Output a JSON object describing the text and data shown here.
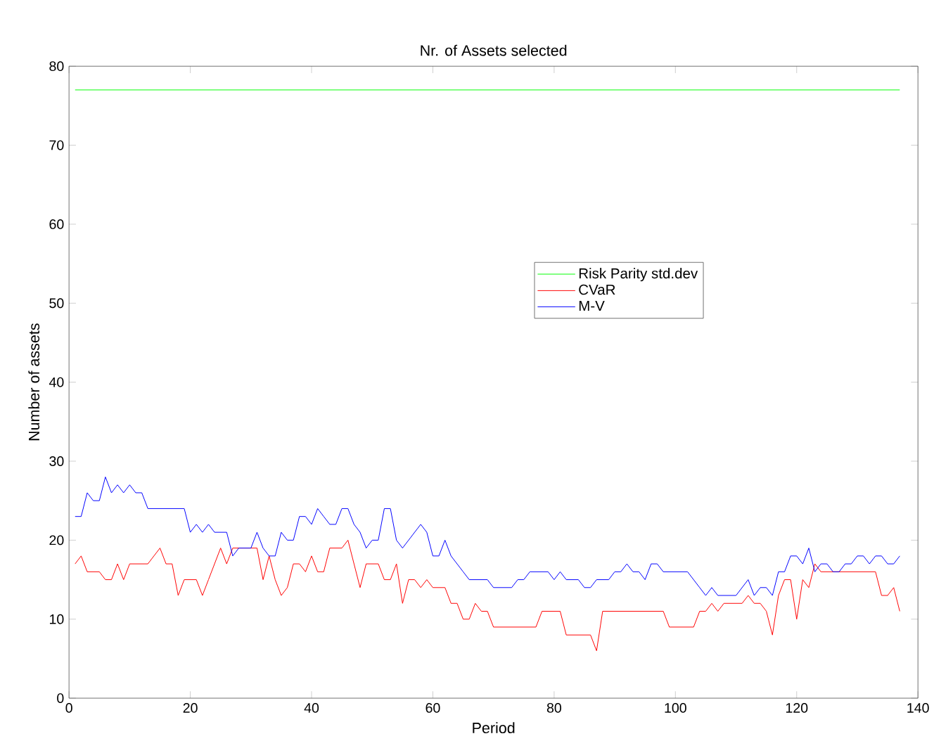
{
  "chart_data": {
    "type": "line",
    "title": "Nr. of Assets selected",
    "xlabel": "Period",
    "ylabel": "Number of assets",
    "xlim": [
      0,
      140
    ],
    "xticks": [
      0,
      20,
      40,
      60,
      80,
      100,
      120,
      140
    ],
    "ylim": [
      0,
      80
    ],
    "yticks": [
      0,
      10,
      20,
      30,
      40,
      50,
      60,
      70,
      80
    ],
    "legend": "right",
    "grid": false,
    "series": [
      {
        "name": "Risk Parity std.dev",
        "color": "#00ff00",
        "x": [
          1,
          137
        ],
        "values": [
          77,
          77
        ]
      },
      {
        "name": "CVaR",
        "color": "#ff0000",
        "x": [
          1,
          2,
          3,
          5,
          6,
          7,
          8,
          9,
          10,
          13,
          15,
          16,
          17,
          18,
          19,
          21,
          22,
          23,
          25,
          26,
          27,
          31,
          32,
          33,
          34,
          35,
          36,
          37,
          38,
          39,
          40,
          41,
          42,
          43,
          45,
          46,
          47,
          48,
          49,
          51,
          52,
          53,
          54,
          55,
          56,
          57,
          58,
          59,
          60,
          62,
          63,
          64,
          65,
          66,
          67,
          68,
          69,
          70,
          77,
          78,
          81,
          82,
          86,
          87,
          88,
          98,
          99,
          103,
          104,
          105,
          106,
          107,
          108,
          111,
          112,
          113,
          114,
          115,
          116,
          117,
          118,
          119,
          120,
          121,
          122,
          123,
          124,
          133,
          134,
          135,
          136,
          137
        ],
        "values": [
          17,
          18,
          16,
          16,
          15,
          15,
          17,
          15,
          17,
          17,
          19,
          17,
          17,
          13,
          15,
          15,
          13,
          15,
          19,
          17,
          19,
          19,
          15,
          18,
          15,
          13,
          14,
          17,
          17,
          16,
          18,
          16,
          16,
          19,
          19,
          20,
          17,
          14,
          17,
          17,
          15,
          15,
          17,
          12,
          15,
          15,
          14,
          15,
          14,
          14,
          12,
          12,
          10,
          10,
          12,
          11,
          11,
          9,
          9,
          11,
          11,
          8,
          8,
          6,
          11,
          11,
          9,
          9,
          11,
          11,
          12,
          11,
          12,
          12,
          13,
          12,
          12,
          11,
          8,
          13,
          15,
          15,
          10,
          15,
          14,
          17,
          16,
          16,
          13,
          13,
          14,
          11
        ]
      },
      {
        "name": "M-V",
        "color": "#0000ff",
        "x": [
          1,
          2,
          3,
          4,
          5,
          6,
          7,
          8,
          9,
          10,
          11,
          12,
          13,
          19,
          20,
          21,
          22,
          23,
          24,
          26,
          27,
          28,
          30,
          31,
          32,
          33,
          34,
          35,
          36,
          37,
          38,
          39,
          40,
          41,
          42,
          43,
          44,
          45,
          46,
          47,
          48,
          49,
          50,
          51,
          52,
          53,
          54,
          55,
          58,
          59,
          60,
          61,
          62,
          63,
          65,
          66,
          69,
          70,
          73,
          74,
          75,
          76,
          79,
          80,
          81,
          82,
          84,
          85,
          86,
          87,
          89,
          90,
          91,
          92,
          93,
          94,
          95,
          96,
          97,
          98,
          102,
          104,
          105,
          106,
          107,
          110,
          112,
          113,
          114,
          115,
          116,
          117,
          118,
          119,
          120,
          121,
          122,
          123,
          124,
          125,
          126,
          127,
          128,
          129,
          130,
          131,
          132,
          133,
          134,
          135,
          136,
          137
        ],
        "values": [
          23,
          23,
          26,
          25,
          25,
          28,
          26,
          27,
          26,
          27,
          26,
          26,
          24,
          24,
          21,
          22,
          21,
          22,
          21,
          21,
          18,
          19,
          19,
          21,
          19,
          18,
          18,
          21,
          20,
          20,
          23,
          23,
          22,
          24,
          23,
          22,
          22,
          24,
          24,
          22,
          21,
          19,
          20,
          20,
          24,
          24,
          20,
          19,
          22,
          21,
          18,
          18,
          20,
          18,
          16,
          15,
          15,
          14,
          14,
          15,
          15,
          16,
          16,
          15,
          16,
          15,
          15,
          14,
          14,
          15,
          15,
          16,
          16,
          17,
          16,
          16,
          15,
          17,
          17,
          16,
          16,
          14,
          13,
          14,
          13,
          13,
          15,
          13,
          14,
          14,
          13,
          16,
          16,
          18,
          18,
          17,
          19,
          16,
          17,
          17,
          16,
          16,
          17,
          17,
          18,
          18,
          17,
          18,
          18,
          17,
          17,
          18
        ]
      }
    ]
  }
}
